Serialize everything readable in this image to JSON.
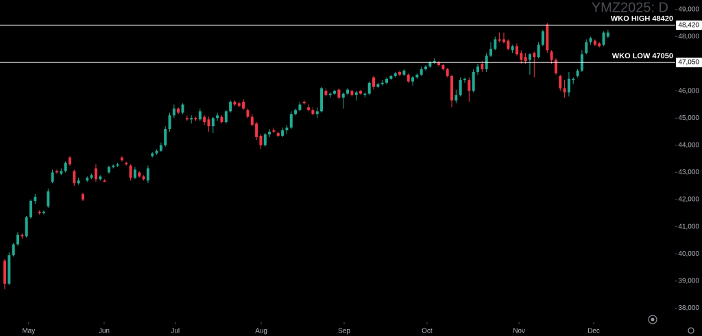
{
  "chart_data": {
    "type": "candlestick",
    "title": "YMZ2025: D",
    "up_color": "#22ab94",
    "down_color": "#f23645",
    "candles": {
      "open": [
        39750,
        38900,
        39950,
        40350,
        40700,
        40650,
        41350,
        41950,
        41550,
        41500,
        41750,
        42650,
        43050,
        42950,
        43050,
        43550,
        43050,
        42600,
        42200,
        42700,
        42800,
        43150,
        42750,
        42700,
        43000,
        43200,
        43250,
        43550,
        43350,
        43250,
        42800,
        43000,
        42850,
        42700,
        43600,
        43700,
        43800,
        44000,
        44600,
        45100,
        45350,
        45200,
        45000,
        44950,
        45000,
        44950,
        45050,
        44950,
        44700,
        45000,
        45050,
        44850,
        45250,
        45600,
        45550,
        45600,
        45300,
        45050,
        44800,
        44350,
        44000,
        44400,
        44550,
        44450,
        44350,
        44550,
        44650,
        45150,
        45300,
        45600,
        45400,
        45300,
        45150,
        45250,
        46000,
        45850,
        45900,
        46050,
        45750,
        45900,
        46000,
        45850,
        46000,
        45850,
        45900,
        46500,
        46150,
        46250,
        46300,
        46450,
        46550,
        46700,
        46600,
        46600,
        46350,
        46500,
        46600,
        46800,
        46900,
        47050,
        47050,
        46950,
        46800,
        46550,
        45650,
        45850,
        46400,
        46400,
        46000,
        46700,
        47000,
        46800,
        47300,
        47550,
        47900,
        47900,
        47850,
        47500,
        47650,
        47400,
        47250,
        47150,
        47400,
        47250,
        47700,
        48450,
        47450,
        47150,
        46550,
        46100,
        45950,
        46400,
        46550,
        46750,
        47400,
        47800,
        47850,
        47750,
        47700,
        48000
      ],
      "high": [
        39800,
        40050,
        40400,
        40800,
        40750,
        41400,
        42000,
        42200,
        41600,
        41600,
        42400,
        43100,
        43100,
        43150,
        43400,
        43600,
        43100,
        42800,
        42250,
        42850,
        42950,
        43300,
        42900,
        42750,
        43250,
        43300,
        43350,
        43600,
        43400,
        43300,
        43200,
        43050,
        42900,
        43250,
        43750,
        43850,
        44100,
        44700,
        45200,
        45500,
        45400,
        45550,
        45100,
        45100,
        45050,
        45350,
        45100,
        45050,
        45050,
        45200,
        45100,
        45300,
        45650,
        45650,
        45600,
        45700,
        45350,
        45150,
        44850,
        44400,
        44450,
        44600,
        44650,
        44500,
        44650,
        44750,
        45250,
        45350,
        45600,
        45650,
        45500,
        45400,
        45400,
        46150,
        46100,
        45950,
        46050,
        46100,
        45950,
        46100,
        46050,
        46000,
        46050,
        45950,
        46350,
        46550,
        46300,
        46400,
        46500,
        46600,
        46700,
        46750,
        46800,
        46650,
        46550,
        46650,
        46900,
        46950,
        47100,
        47200,
        47100,
        47000,
        46850,
        46600,
        46050,
        46500,
        46500,
        46500,
        46800,
        47000,
        47100,
        47400,
        47800,
        48000,
        48150,
        48150,
        47900,
        47700,
        47750,
        47500,
        47400,
        47400,
        47450,
        47800,
        48250,
        48500,
        47500,
        47200,
        46600,
        46400,
        46700,
        46500,
        46800,
        47500,
        47900,
        48000,
        47900,
        47800,
        48200,
        48250
      ],
      "low": [
        38700,
        38850,
        39900,
        40300,
        40550,
        40600,
        41300,
        41850,
        41450,
        41450,
        41700,
        42600,
        42950,
        42900,
        43000,
        43250,
        42500,
        42550,
        41950,
        42650,
        42750,
        42650,
        42700,
        42650,
        42950,
        43150,
        43200,
        43400,
        43250,
        42700,
        42750,
        42800,
        42700,
        42600,
        43550,
        43650,
        43750,
        43950,
        44500,
        45000,
        45150,
        45150,
        44900,
        44800,
        44900,
        44900,
        44750,
        44500,
        44450,
        44900,
        44800,
        44800,
        45200,
        45450,
        45400,
        45300,
        45000,
        44700,
        44200,
        43850,
        43950,
        44300,
        44450,
        44300,
        44300,
        44400,
        44600,
        45100,
        45250,
        45500,
        45250,
        45100,
        45000,
        45200,
        45800,
        45750,
        45850,
        45700,
        45350,
        45850,
        45800,
        45650,
        45850,
        45750,
        45850,
        46050,
        46100,
        46200,
        46250,
        46400,
        46500,
        46550,
        46550,
        46300,
        46200,
        46450,
        46550,
        46750,
        46850,
        47000,
        46900,
        46750,
        46500,
        45400,
        45550,
        45800,
        46300,
        45600,
        45950,
        46600,
        46700,
        46700,
        47250,
        47500,
        47800,
        47750,
        47500,
        47400,
        47300,
        47000,
        47000,
        46600,
        46500,
        47200,
        47650,
        47400,
        47000,
        46600,
        46000,
        45750,
        45800,
        46250,
        46500,
        46700,
        47350,
        47700,
        47650,
        47600,
        47650,
        47950
      ],
      "close": [
        38900,
        39950,
        40350,
        40700,
        40650,
        41350,
        41950,
        42100,
        41500,
        41550,
        42300,
        43000,
        43000,
        43050,
        43350,
        43300,
        42600,
        42700,
        42000,
        42800,
        42900,
        42750,
        42850,
        42650,
        43200,
        43250,
        43300,
        43450,
        43300,
        42800,
        43100,
        42850,
        42750,
        43150,
        43700,
        43800,
        44000,
        44600,
        45100,
        45350,
        45200,
        45500,
        44950,
        45000,
        44950,
        45250,
        44850,
        44700,
        45000,
        45100,
        44850,
        45250,
        45600,
        45500,
        45450,
        45350,
        45050,
        44750,
        44300,
        44000,
        44400,
        44500,
        44500,
        44350,
        44550,
        44650,
        45150,
        45300,
        45500,
        45550,
        45300,
        45150,
        45250,
        46100,
        45850,
        45900,
        46000,
        45750,
        45900,
        46050,
        45850,
        45950,
        45900,
        45900,
        46300,
        46150,
        46250,
        46300,
        46450,
        46550,
        46650,
        46600,
        46750,
        46350,
        46500,
        46600,
        46800,
        46900,
        47050,
        47100,
        46950,
        46800,
        46550,
        45650,
        45850,
        46400,
        46450,
        46000,
        46700,
        46900,
        46800,
        47300,
        47550,
        47900,
        47850,
        47800,
        47550,
        47650,
        47350,
        47150,
        47100,
        47350,
        47250,
        47700,
        48200,
        47500,
        47150,
        46650,
        46100,
        45950,
        46450,
        46450,
        46750,
        47350,
        47800,
        47950,
        47700,
        47650,
        48150,
        48150
      ]
    },
    "levels": [
      {
        "value": 48420,
        "label": "WKO HIGH 48420",
        "axis_label": "48,420"
      },
      {
        "value": 47050,
        "label": "WKO LOW 47050",
        "axis_label": "47,050"
      }
    ],
    "xlim": [
      -1.1,
      154.5
    ],
    "xticks": [
      {
        "value": 5.5,
        "label": "May"
      },
      {
        "value": 22.9,
        "label": "Jun"
      },
      {
        "value": 39.3,
        "label": "Jul"
      },
      {
        "value": 59.1,
        "label": "Aug"
      },
      {
        "value": 78.2,
        "label": "Sep"
      },
      {
        "value": 97.3,
        "label": "Oct"
      },
      {
        "value": 118.5,
        "label": "Nov"
      },
      {
        "value": 135.7,
        "label": "Dec"
      }
    ],
    "ylim": [
      37480,
      49350
    ],
    "yticks": [
      {
        "value": 38000,
        "label": "38,000"
      },
      {
        "value": 39000,
        "label": "39,000"
      },
      {
        "value": 40000,
        "label": "40,000"
      },
      {
        "value": 41000,
        "label": "41,000"
      },
      {
        "value": 42000,
        "label": "42,000"
      },
      {
        "value": 43000,
        "label": "43,000"
      },
      {
        "value": 44000,
        "label": "44,000"
      },
      {
        "value": 45000,
        "label": "45,000"
      },
      {
        "value": 46000,
        "label": "46,000"
      },
      {
        "value": 47000,
        "label": "47,000"
      },
      {
        "value": 48000,
        "label": "48,000"
      },
      {
        "value": 49000,
        "label": "49,000"
      }
    ]
  }
}
